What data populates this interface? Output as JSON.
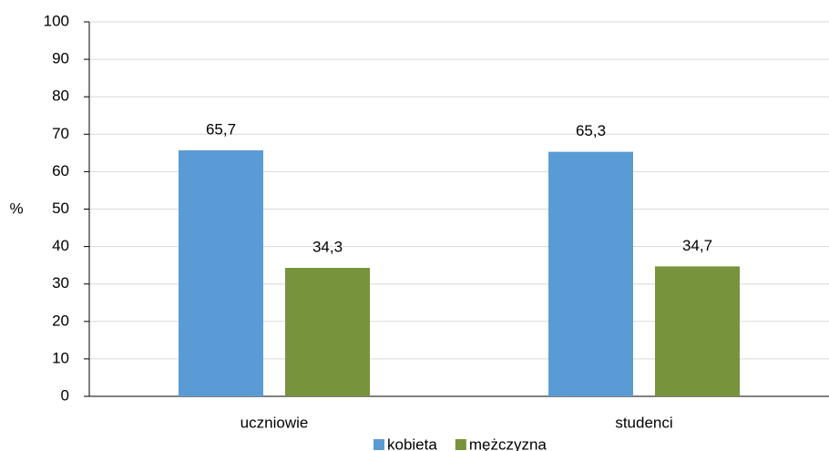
{
  "chart_data": {
    "type": "bar",
    "ylabel": "%",
    "categories": [
      "uczniowie",
      "studenci"
    ],
    "series": [
      {
        "name": "kobieta",
        "color": "#5b9bd5",
        "values": [
          65.7,
          65.3
        ],
        "value_labels": [
          "65,7",
          "65,3"
        ]
      },
      {
        "name": "mężczyzna",
        "color": "#77933c",
        "values": [
          34.3,
          34.7
        ],
        "value_labels": [
          "34,3",
          "34,7"
        ]
      }
    ],
    "ylim": [
      0,
      100
    ],
    "yticks": [
      0,
      10,
      20,
      30,
      40,
      50,
      60,
      70,
      80,
      90,
      100
    ],
    "grid": true,
    "legend": "bottom"
  }
}
